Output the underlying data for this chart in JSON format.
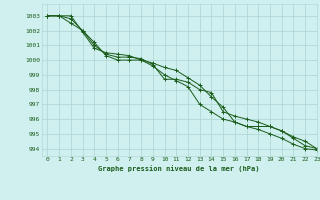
{
  "title": "Graphe pression niveau de la mer (hPa)",
  "background_color": "#d0f0f0",
  "grid_color": "#b0d8d8",
  "line_color": "#1a5c1a",
  "xlim": [
    -0.5,
    23
  ],
  "ylim": [
    993.5,
    1003.8
  ],
  "yticks": [
    994,
    995,
    996,
    997,
    998,
    999,
    1000,
    1001,
    1002,
    1003
  ],
  "xticks": [
    0,
    1,
    2,
    3,
    4,
    5,
    6,
    7,
    8,
    9,
    10,
    11,
    12,
    13,
    14,
    15,
    16,
    17,
    18,
    19,
    20,
    21,
    22,
    23
  ],
  "series": [
    [
      1003.0,
      1003.0,
      1002.5,
      1002.0,
      1001.2,
      1000.3,
      1000.0,
      1000.0,
      1000.0,
      999.8,
      999.5,
      999.3,
      998.8,
      998.3,
      997.5,
      996.8,
      995.8,
      995.5,
      995.5,
      995.5,
      995.2,
      994.8,
      994.5,
      994.0
    ],
    [
      1003.0,
      1003.0,
      1002.8,
      1002.0,
      1001.0,
      1000.4,
      1000.2,
      1000.2,
      1000.1,
      999.7,
      998.7,
      998.7,
      998.5,
      998.0,
      997.8,
      996.5,
      996.2,
      996.0,
      995.8,
      995.5,
      995.2,
      994.7,
      994.2,
      994.0
    ],
    [
      1003.0,
      1003.0,
      1003.0,
      1001.9,
      1000.8,
      1000.5,
      1000.4,
      1000.3,
      1000.0,
      999.6,
      999.0,
      998.6,
      998.2,
      997.0,
      996.5,
      996.0,
      995.8,
      995.5,
      995.3,
      995.0,
      994.7,
      994.3,
      994.0,
      993.9
    ]
  ],
  "figsize": [
    3.2,
    2.0
  ],
  "dpi": 100
}
